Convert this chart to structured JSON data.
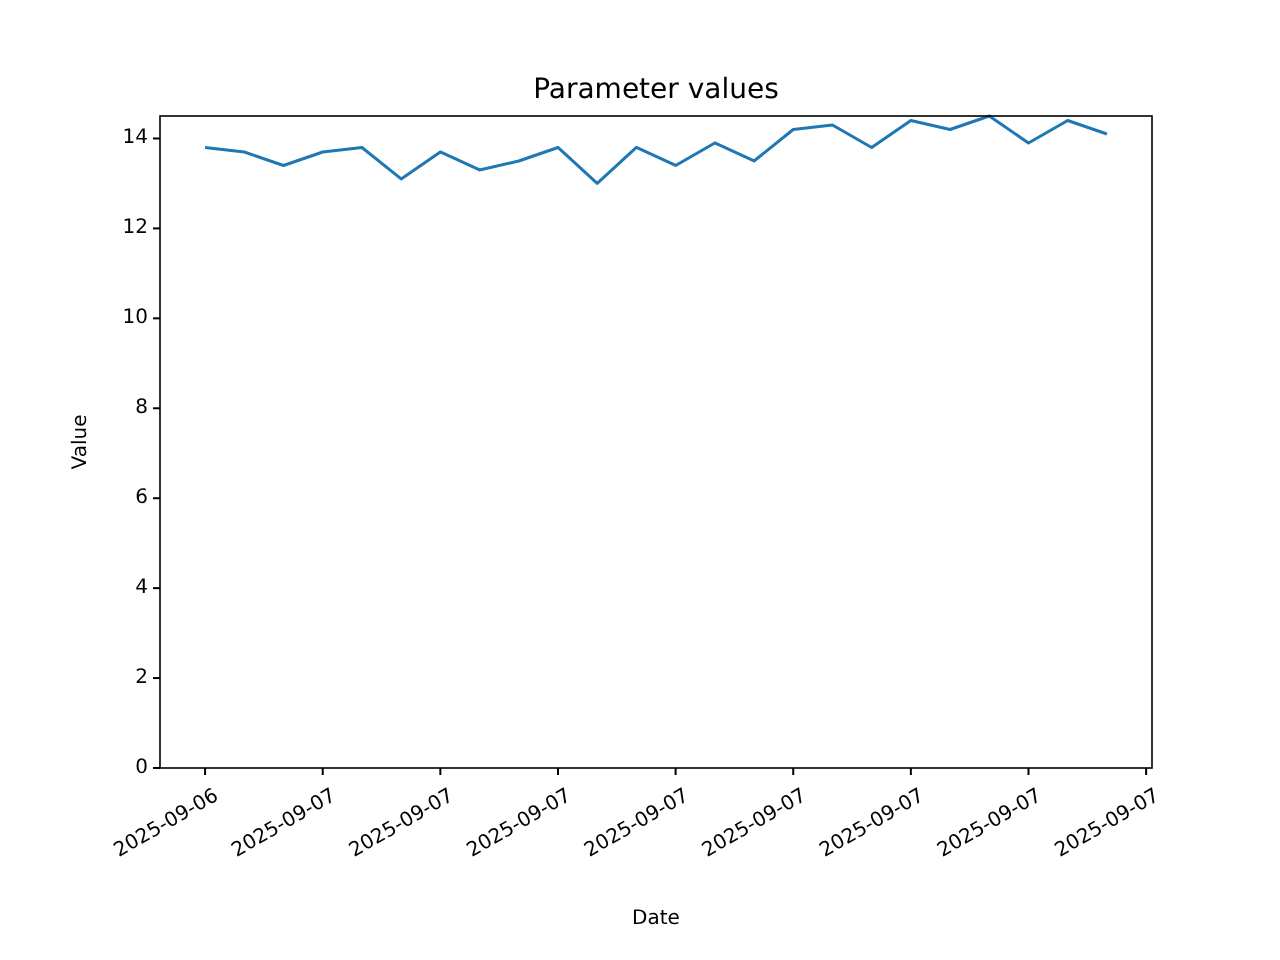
{
  "chart_data": {
    "type": "line",
    "title": "Parameter values",
    "xlabel": "Date",
    "ylabel": "Value",
    "x": [
      "2025-09-06T23:00",
      "2025-09-07T00:00",
      "2025-09-07T01:00",
      "2025-09-07T02:00",
      "2025-09-07T03:00",
      "2025-09-07T04:00",
      "2025-09-07T05:00",
      "2025-09-07T06:00",
      "2025-09-07T07:00",
      "2025-09-07T08:00",
      "2025-09-07T09:00",
      "2025-09-07T10:00",
      "2025-09-07T11:00",
      "2025-09-07T12:00",
      "2025-09-07T13:00",
      "2025-09-07T14:00",
      "2025-09-07T15:00",
      "2025-09-07T16:00",
      "2025-09-07T17:00",
      "2025-09-07T18:00",
      "2025-09-07T19:00",
      "2025-09-07T20:00",
      "2025-09-07T21:00",
      "2025-09-07T22:00"
    ],
    "series": [
      {
        "color": "#1f77b4",
        "values": [
          13.8,
          13.7,
          13.4,
          13.7,
          13.8,
          13.1,
          13.7,
          13.3,
          13.5,
          13.8,
          13.0,
          13.8,
          13.4,
          13.9,
          13.5,
          14.2,
          14.3,
          13.8,
          14.4,
          14.2,
          14.5,
          13.9,
          14.4,
          14.1
        ]
      }
    ],
    "xlim": [
      "2025-09-06T21:51",
      "2025-09-07T23:09"
    ],
    "xticks": [
      {
        "value": "2025-09-06T23:00",
        "label": "2025-09-06"
      },
      {
        "value": "2025-09-07T02:00",
        "label": "2025-09-07"
      },
      {
        "value": "2025-09-07T05:00",
        "label": "2025-09-07"
      },
      {
        "value": "2025-09-07T08:00",
        "label": "2025-09-07"
      },
      {
        "value": "2025-09-07T11:00",
        "label": "2025-09-07"
      },
      {
        "value": "2025-09-07T14:00",
        "label": "2025-09-07"
      },
      {
        "value": "2025-09-07T17:00",
        "label": "2025-09-07"
      },
      {
        "value": "2025-09-07T20:00",
        "label": "2025-09-07"
      },
      {
        "value": "2025-09-07T23:00",
        "label": "2025-09-07"
      }
    ],
    "ylim": [
      0,
      14.5
    ],
    "yticks": [
      0,
      2,
      4,
      6,
      8,
      10,
      12,
      14
    ],
    "grid": false
  }
}
